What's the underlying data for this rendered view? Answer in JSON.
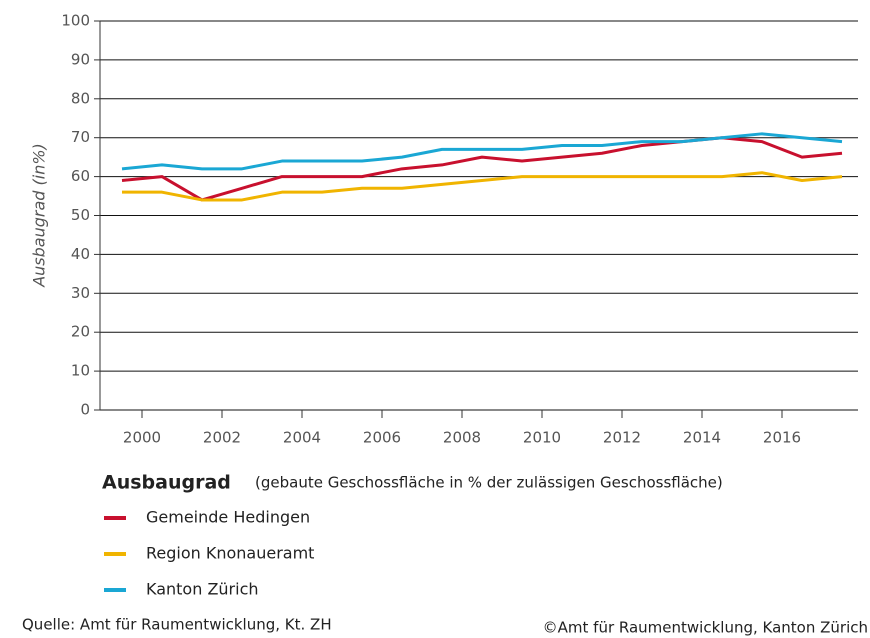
{
  "chart_data": {
    "type": "line",
    "ylabel": "Ausbaugrad (in%)",
    "legend_title": "Ausbaugrad",
    "legend_subtitle": "(gebaute Geschossfläche in % der zulässigen Geschossfläche)",
    "source_left": "Quelle: Amt für Raumentwicklung, Kt. ZH",
    "source_right": "©Amt für Raumentwicklung, Kanton Zürich",
    "x": [
      1999.5,
      2000.5,
      2001.5,
      2002.5,
      2003.5,
      2004.5,
      2005.5,
      2006.5,
      2007.5,
      2008.5,
      2009.5,
      2010.5,
      2011.5,
      2012.5,
      2013.5,
      2014.5,
      2015.5,
      2016.5,
      2017.5
    ],
    "series": [
      {
        "name": "Gemeinde Hedingen",
        "color": "#c8102e",
        "values": [
          59,
          60,
          54,
          57,
          60,
          60,
          60,
          62,
          63,
          65,
          64,
          65,
          66,
          68,
          69,
          70,
          69,
          65,
          66
        ]
      },
      {
        "name": "Region Knonaueramt",
        "color": "#f0b400",
        "values": [
          56,
          56,
          54,
          54,
          56,
          56,
          57,
          57,
          58,
          59,
          60,
          60,
          60,
          60,
          60,
          60,
          61,
          59,
          60
        ]
      },
      {
        "name": "Kanton Zürich",
        "color": "#1aa7d4",
        "values": [
          62,
          63,
          62,
          62,
          64,
          64,
          64,
          65,
          67,
          67,
          67,
          68,
          68,
          69,
          69,
          70,
          71,
          70,
          69
        ]
      }
    ],
    "xlim": [
      1998.95,
      2017.9
    ],
    "xticks": [
      2000,
      2002,
      2004,
      2006,
      2008,
      2010,
      2012,
      2014,
      2016
    ],
    "ylim": [
      0,
      100
    ],
    "yticks": [
      0,
      10,
      20,
      30,
      40,
      50,
      60,
      70,
      80,
      90,
      100
    ],
    "grid": true
  }
}
